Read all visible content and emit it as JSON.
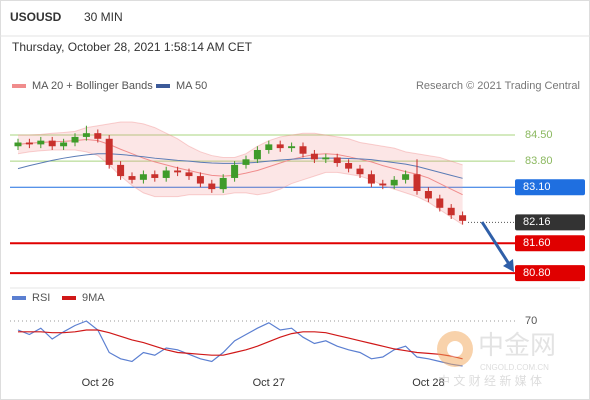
{
  "header": {
    "symbol": "USOUSD",
    "interval": "30 MIN",
    "datetime": "Thursday, October 28, 2021 1:58:14 AM CET"
  },
  "legend": {
    "ma20": "MA 20 + Bollinger Bands",
    "ma50": "MA 50",
    "credit": "Research © 2021 Trading Central"
  },
  "watermark": {
    "logo": "中金网",
    "site": "CNGOLD.COM.CN",
    "tagline": "中 文 财 经 新 媒 体"
  },
  "chart_data": [
    {
      "type": "candlestick",
      "categories": [
        null,
        null,
        null,
        null,
        null,
        null,
        null,
        "Oct 26",
        null,
        null,
        null,
        null,
        null,
        null,
        null,
        null,
        null,
        null,
        null,
        null,
        null,
        null,
        "Oct 27",
        null,
        null,
        null,
        null,
        null,
        null,
        null,
        null,
        null,
        null,
        null,
        null,
        null,
        "Oct 28",
        null,
        null,
        null
      ],
      "open": [
        84.2,
        84.3,
        84.25,
        84.35,
        84.2,
        84.3,
        84.45,
        84.55,
        84.4,
        83.7,
        83.4,
        83.3,
        83.45,
        83.35,
        83.55,
        83.5,
        83.4,
        83.2,
        83.05,
        83.35,
        83.7,
        83.85,
        84.1,
        84.25,
        84.15,
        84.2,
        84.0,
        83.85,
        83.9,
        83.75,
        83.6,
        83.45,
        83.2,
        83.15,
        83.3,
        83.45,
        83.0,
        82.8,
        82.55,
        82.35
      ],
      "high": [
        84.4,
        84.4,
        84.45,
        84.45,
        84.4,
        84.55,
        84.75,
        84.65,
        84.5,
        83.8,
        83.5,
        83.55,
        83.55,
        83.65,
        83.65,
        83.6,
        83.5,
        83.3,
        83.45,
        83.8,
        83.95,
        84.2,
        84.35,
        84.35,
        84.3,
        84.3,
        84.1,
        84.0,
        84.0,
        83.85,
        83.7,
        83.55,
        83.3,
        83.4,
        83.55,
        83.85,
        83.1,
        82.9,
        82.65,
        82.45
      ],
      "low": [
        84.1,
        84.15,
        84.15,
        84.1,
        84.1,
        84.2,
        84.35,
        84.3,
        83.6,
        83.3,
        83.2,
        83.2,
        83.25,
        83.25,
        83.4,
        83.3,
        83.1,
        82.95,
        82.95,
        83.25,
        83.6,
        83.75,
        84.0,
        84.05,
        84.05,
        83.9,
        83.75,
        83.75,
        83.65,
        83.5,
        83.35,
        83.1,
        83.05,
        83.05,
        83.2,
        82.9,
        82.7,
        82.45,
        82.25,
        82.1
      ],
      "close": [
        84.3,
        84.25,
        84.35,
        84.2,
        84.3,
        84.45,
        84.55,
        84.4,
        83.7,
        83.4,
        83.3,
        83.45,
        83.35,
        83.55,
        83.5,
        83.4,
        83.2,
        83.05,
        83.35,
        83.7,
        83.85,
        84.1,
        84.25,
        84.15,
        84.2,
        84.0,
        83.85,
        83.9,
        83.75,
        83.6,
        83.45,
        83.2,
        83.15,
        83.3,
        83.45,
        83.0,
        82.8,
        82.55,
        82.35,
        82.2
      ],
      "ma50": [
        83.6,
        83.68,
        83.75,
        83.82,
        83.88,
        83.93,
        83.97,
        84.0,
        84.0,
        83.98,
        83.95,
        83.92,
        83.88,
        83.85,
        83.82,
        83.8,
        83.77,
        83.75,
        83.74,
        83.74,
        83.75,
        83.77,
        83.8,
        83.83,
        83.85,
        83.87,
        83.88,
        83.88,
        83.88,
        83.87,
        83.86,
        83.84,
        83.8,
        83.76,
        83.72,
        83.66,
        83.58,
        83.5,
        83.42,
        83.34
      ],
      "ma20": [
        84.25,
        84.28,
        84.3,
        84.32,
        84.33,
        84.35,
        84.38,
        84.35,
        84.25,
        84.12,
        84.0,
        83.88,
        83.78,
        83.7,
        83.62,
        83.55,
        83.48,
        83.42,
        83.4,
        83.42,
        83.48,
        83.55,
        83.65,
        83.75,
        83.85,
        83.92,
        83.98,
        84.0,
        83.98,
        83.92,
        83.85,
        83.78,
        83.68,
        83.6,
        83.52,
        83.45,
        83.35,
        83.2,
        83.05,
        82.9
      ],
      "bb_upper": [
        84.5,
        84.5,
        84.52,
        84.55,
        84.57,
        84.6,
        84.7,
        84.75,
        84.8,
        84.85,
        84.85,
        84.8,
        84.7,
        84.55,
        84.4,
        84.2,
        84.05,
        83.95,
        83.9,
        83.9,
        84.0,
        84.2,
        84.35,
        84.45,
        84.5,
        84.55,
        84.55,
        84.5,
        84.45,
        84.4,
        84.3,
        84.25,
        84.2,
        84.15,
        84.05,
        84.0,
        83.95,
        83.9,
        83.8,
        83.7
      ],
      "bb_lower": [
        84.0,
        84.05,
        84.08,
        84.1,
        84.1,
        84.1,
        84.05,
        83.95,
        83.7,
        83.4,
        83.15,
        82.95,
        82.85,
        82.85,
        82.85,
        82.9,
        82.9,
        82.9,
        82.9,
        82.95,
        82.95,
        82.9,
        82.95,
        83.05,
        83.2,
        83.3,
        83.4,
        83.5,
        83.5,
        83.45,
        83.4,
        83.3,
        83.15,
        83.05,
        82.95,
        82.85,
        82.7,
        82.5,
        82.3,
        82.1
      ],
      "up_color": "#3f9b2a",
      "down_color": "#c8302c",
      "ma50_color": "#5a7bb5",
      "ma20_color": "#f08c8c",
      "ylim": [
        80.48,
        85.44
      ],
      "levels": [
        {
          "value": 84.5,
          "label": "84.50",
          "color": "#a9d47f",
          "kind": "plain"
        },
        {
          "value": 83.8,
          "label": "83.80",
          "color": "#a9d47f",
          "kind": "plain"
        },
        {
          "value": 83.1,
          "label": "83.10",
          "color": "#1f6fe0",
          "kind": "box"
        },
        {
          "value": 82.16,
          "label": "82.16",
          "color": "#333333",
          "kind": "last"
        },
        {
          "value": 81.6,
          "label": "81.60",
          "color": "#e00000",
          "kind": "box"
        },
        {
          "value": 80.8,
          "label": "80.80",
          "color": "#e00000",
          "kind": "box"
        }
      ]
    },
    {
      "type": "line",
      "series": [
        {
          "name": "RSI",
          "color": "#5b7fd1",
          "values": [
            60,
            55,
            62,
            50,
            58,
            65,
            70,
            60,
            35,
            28,
            25,
            35,
            32,
            40,
            38,
            33,
            28,
            25,
            35,
            48,
            55,
            62,
            68,
            60,
            62,
            52,
            45,
            48,
            42,
            38,
            35,
            28,
            30,
            38,
            42,
            30,
            28,
            25,
            22,
            20
          ]
        },
        {
          "name": "9MA",
          "color": "#d01818",
          "values": [
            58,
            58,
            58,
            57,
            57,
            58,
            60,
            60,
            57,
            53,
            49,
            46,
            42,
            38,
            35,
            34,
            33,
            32,
            32,
            35,
            38,
            42,
            47,
            52,
            56,
            58,
            58,
            57,
            54,
            51,
            48,
            45,
            42,
            39,
            37,
            35,
            34,
            33,
            31,
            28
          ]
        }
      ],
      "ylim": [
        10,
        80
      ],
      "yticks": [
        70
      ]
    }
  ]
}
